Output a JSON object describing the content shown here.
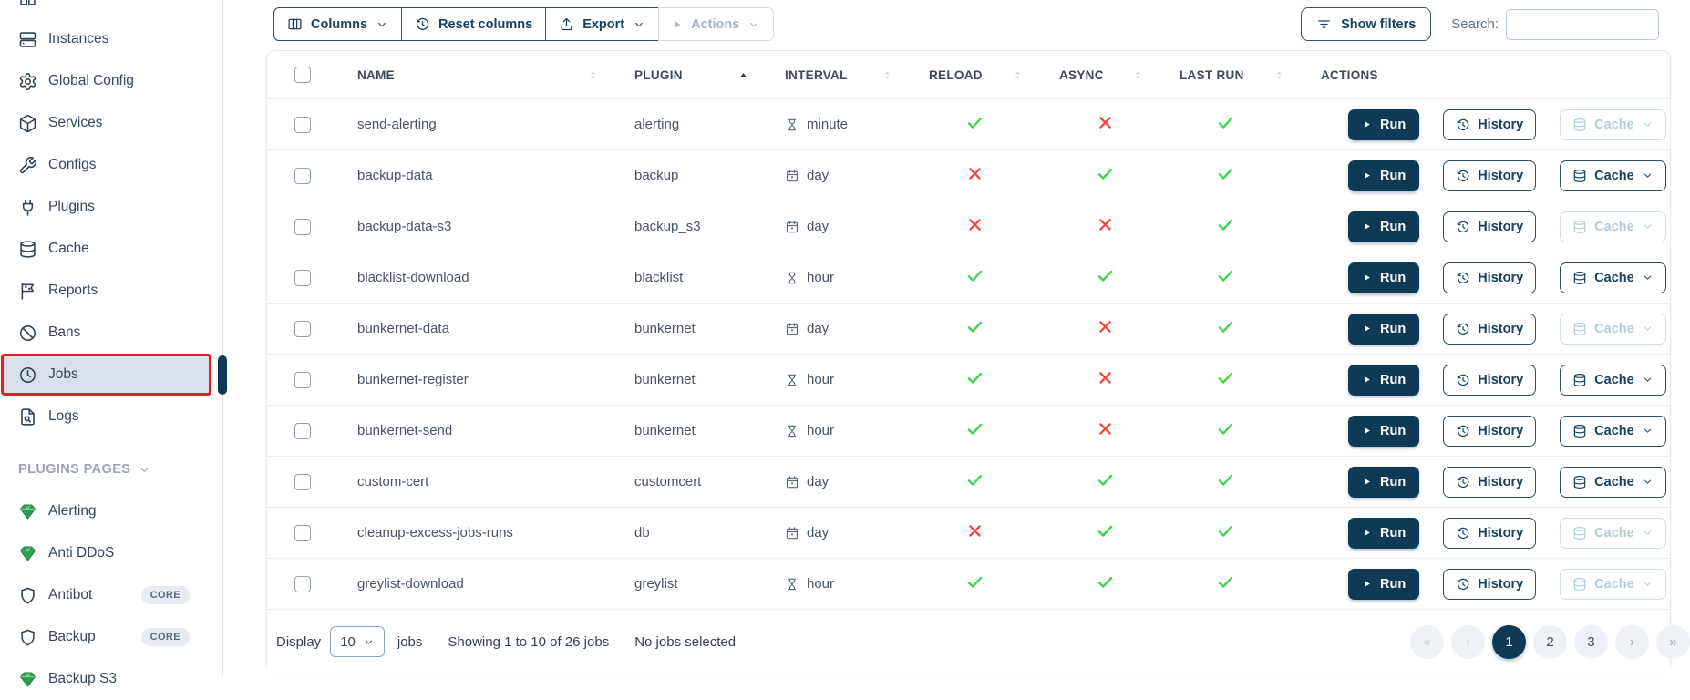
{
  "sidebar": {
    "items": [
      {
        "label": "Instances",
        "icon": "server"
      },
      {
        "label": "Global Config",
        "icon": "gear"
      },
      {
        "label": "Services",
        "icon": "cube"
      },
      {
        "label": "Configs",
        "icon": "wrench"
      },
      {
        "label": "Plugins",
        "icon": "plug"
      },
      {
        "label": "Cache",
        "icon": "database"
      },
      {
        "label": "Reports",
        "icon": "flag"
      },
      {
        "label": "Bans",
        "icon": "ban"
      },
      {
        "label": "Jobs",
        "icon": "clock",
        "active": true
      },
      {
        "label": "Logs",
        "icon": "file-search"
      }
    ],
    "plugins_section": {
      "label": "PLUGINS PAGES"
    },
    "plugin_items": [
      {
        "label": "Alerting",
        "icon": "gem"
      },
      {
        "label": "Anti DDoS",
        "icon": "gem"
      },
      {
        "label": "Antibot",
        "icon": "shield",
        "badge": "CORE"
      },
      {
        "label": "Backup",
        "icon": "shield",
        "badge": "CORE"
      },
      {
        "label": "Backup S3",
        "icon": "gem"
      }
    ]
  },
  "toolbar": {
    "columns_label": "Columns",
    "reset_columns_label": "Reset columns",
    "export_label": "Export",
    "actions_label": "Actions",
    "actions_disabled": true,
    "show_filters_label": "Show filters",
    "search_label": "Search:",
    "search_value": ""
  },
  "table": {
    "select_all_checked": false,
    "headers": [
      {
        "label": "NAME",
        "sortable": true,
        "sorted": null
      },
      {
        "label": "PLUGIN",
        "sortable": true,
        "sorted": "asc"
      },
      {
        "label": "INTERVAL",
        "sortable": true,
        "sorted": null
      },
      {
        "label": "RELOAD",
        "sortable": true,
        "sorted": null
      },
      {
        "label": "ASYNC",
        "sortable": true,
        "sorted": null
      },
      {
        "label": "LAST RUN",
        "sortable": true,
        "sorted": null
      },
      {
        "label": "ACTIONS",
        "sortable": false,
        "sorted": null
      }
    ],
    "actions": {
      "run_label": "Run",
      "history_label": "History",
      "cache_label": "Cache"
    },
    "rows": [
      {
        "name": "send-alerting",
        "plugin": "alerting",
        "interval": "minute",
        "interval_icon": "hourglass",
        "reload": true,
        "async": false,
        "last_run": true,
        "cache_enabled": false
      },
      {
        "name": "backup-data",
        "plugin": "backup",
        "interval": "day",
        "interval_icon": "calendar",
        "reload": false,
        "async": true,
        "last_run": true,
        "cache_enabled": true
      },
      {
        "name": "backup-data-s3",
        "plugin": "backup_s3",
        "interval": "day",
        "interval_icon": "calendar",
        "reload": false,
        "async": false,
        "last_run": true,
        "cache_enabled": false
      },
      {
        "name": "blacklist-download",
        "plugin": "blacklist",
        "interval": "hour",
        "interval_icon": "hourglass",
        "reload": true,
        "async": true,
        "last_run": true,
        "cache_enabled": true
      },
      {
        "name": "bunkernet-data",
        "plugin": "bunkernet",
        "interval": "day",
        "interval_icon": "calendar",
        "reload": true,
        "async": false,
        "last_run": true,
        "cache_enabled": false
      },
      {
        "name": "bunkernet-register",
        "plugin": "bunkernet",
        "interval": "hour",
        "interval_icon": "hourglass",
        "reload": true,
        "async": false,
        "last_run": true,
        "cache_enabled": true
      },
      {
        "name": "bunkernet-send",
        "plugin": "bunkernet",
        "interval": "hour",
        "interval_icon": "hourglass",
        "reload": true,
        "async": false,
        "last_run": true,
        "cache_enabled": true
      },
      {
        "name": "custom-cert",
        "plugin": "customcert",
        "interval": "day",
        "interval_icon": "calendar",
        "reload": true,
        "async": true,
        "last_run": true,
        "cache_enabled": true
      },
      {
        "name": "cleanup-excess-jobs-runs",
        "plugin": "db",
        "interval": "day",
        "interval_icon": "calendar",
        "reload": false,
        "async": true,
        "last_run": true,
        "cache_enabled": false
      },
      {
        "name": "greylist-download",
        "plugin": "greylist",
        "interval": "hour",
        "interval_icon": "hourglass",
        "reload": true,
        "async": true,
        "last_run": true,
        "cache_enabled": false
      }
    ]
  },
  "footer": {
    "display_label": "Display",
    "per_page": "10",
    "jobs_label": "jobs",
    "showing_text": "Showing 1 to 10 of 26 jobs",
    "selection_text": "No jobs selected",
    "pagination": [
      {
        "label": "«",
        "type": "first",
        "disabled": true
      },
      {
        "label": "‹",
        "type": "prev",
        "disabled": true
      },
      {
        "label": "1",
        "type": "page",
        "active": true
      },
      {
        "label": "2",
        "type": "page"
      },
      {
        "label": "3",
        "type": "page"
      },
      {
        "label": "›",
        "type": "next"
      },
      {
        "label": "»",
        "type": "last"
      }
    ]
  },
  "colors": {
    "primary": "#0f3a56",
    "sidebar_active_bg": "#d8e1e9",
    "sidebar_active_border": "#e31e25",
    "check_green": "#3ed44f",
    "cross_red": "#f5463d",
    "badge_bg": "#e7ecf1"
  }
}
